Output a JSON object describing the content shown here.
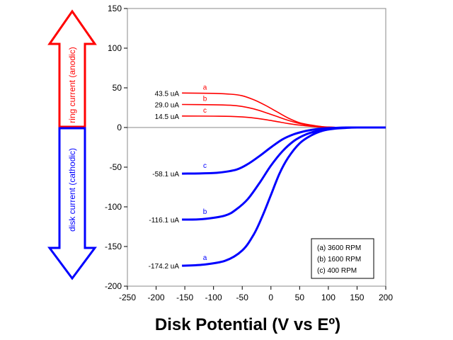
{
  "chart_data": {
    "type": "line",
    "xlabel": "Disk Potential (V vs Eº)",
    "xlim": [
      -250,
      200
    ],
    "ylim": [
      -200,
      150
    ],
    "xticks": [
      -250,
      -200,
      -150,
      -100,
      -50,
      0,
      50,
      100,
      150,
      200
    ],
    "yticks": [
      -200,
      -150,
      -100,
      -50,
      0,
      50,
      100,
      150
    ],
    "grid": false,
    "legend": {
      "placement": "bottom-right",
      "entries": [
        "(a) 3600 RPM",
        "(b) 1600 RPM",
        "(c) 400 RPM"
      ]
    },
    "arrows": {
      "up": {
        "label": "ring current (anodic)",
        "color": "#ff0000"
      },
      "down": {
        "label": "disk current (cathodic)",
        "color": "#0000ff"
      }
    },
    "series": [
      {
        "letter": "a",
        "kind": "ring",
        "value_label": "43.5 uA",
        "color": "#ff0000",
        "x": [
          -155,
          -100,
          -70,
          -50,
          -30,
          -10,
          10,
          30,
          50,
          70,
          90,
          110,
          130,
          200
        ],
        "y": [
          43.5,
          43,
          42,
          40,
          35,
          28,
          20,
          12,
          6,
          3,
          1,
          0.3,
          0,
          0
        ]
      },
      {
        "letter": "b",
        "kind": "ring",
        "value_label": "29.0 uA",
        "color": "#ff0000",
        "x": [
          -155,
          -100,
          -70,
          -50,
          -30,
          -10,
          10,
          30,
          50,
          70,
          90,
          110,
          130,
          200
        ],
        "y": [
          29,
          28.7,
          28,
          26.5,
          23.5,
          19,
          14,
          9,
          5,
          2.5,
          1,
          0.3,
          0,
          0
        ]
      },
      {
        "letter": "c",
        "kind": "ring",
        "value_label": "14.5 uA",
        "color": "#ff0000",
        "x": [
          -155,
          -100,
          -70,
          -50,
          -30,
          -10,
          10,
          30,
          50,
          70,
          90,
          110,
          130,
          200
        ],
        "y": [
          14.5,
          14.3,
          14,
          13.3,
          12,
          10,
          7.5,
          5,
          3,
          1.5,
          0.6,
          0.2,
          0,
          0
        ]
      },
      {
        "letter": "a",
        "kind": "disk",
        "value_label": "-174.2 uA",
        "color": "#0000ff",
        "x": [
          -155,
          -120,
          -80,
          -50,
          -30,
          -15,
          0,
          15,
          30,
          50,
          70,
          90,
          110,
          130,
          150,
          200
        ],
        "y": [
          -174.2,
          -173,
          -168,
          -155,
          -135,
          -112,
          -85,
          -58,
          -38,
          -20,
          -10,
          -4,
          -1.5,
          -0.5,
          0,
          0
        ]
      },
      {
        "letter": "b",
        "kind": "disk",
        "value_label": "-116.1 uA",
        "color": "#0000ff",
        "x": [
          -155,
          -120,
          -80,
          -60,
          -40,
          -20,
          0,
          20,
          40,
          60,
          80,
          100,
          120,
          140,
          200
        ],
        "y": [
          -116.1,
          -115.5,
          -111,
          -103,
          -90,
          -70,
          -48,
          -30,
          -17,
          -9,
          -4.5,
          -2,
          -0.7,
          0,
          0
        ]
      },
      {
        "letter": "c",
        "kind": "disk",
        "value_label": "-58.1 uA",
        "color": "#0000ff",
        "x": [
          -155,
          -120,
          -90,
          -60,
          -40,
          -20,
          0,
          20,
          40,
          60,
          80,
          100,
          120,
          140,
          200
        ],
        "y": [
          -58.1,
          -57.8,
          -56.8,
          -53,
          -46,
          -36,
          -25,
          -15,
          -8.5,
          -4.5,
          -2,
          -0.8,
          -0.2,
          0,
          0
        ]
      }
    ]
  }
}
